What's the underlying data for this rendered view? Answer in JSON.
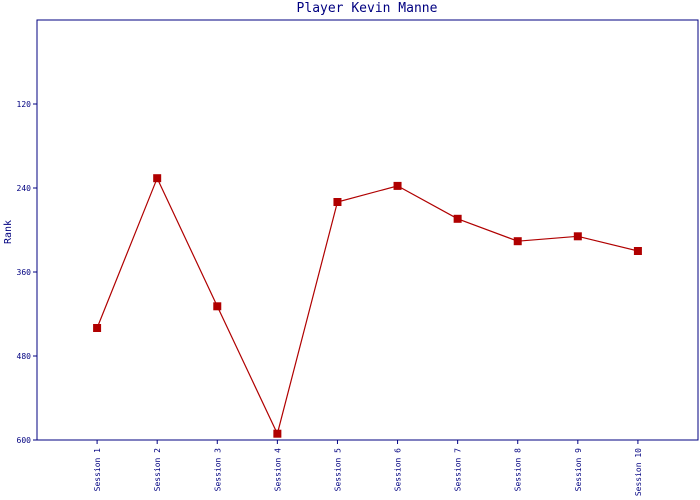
{
  "chart_data": {
    "type": "line",
    "title": "Player Kevin Manne",
    "y_label": "Rank",
    "categories": [
      "Session 1",
      "Session 2",
      "Session 3",
      "Session 4",
      "Session 5",
      "Session 6",
      "Session 7",
      "Session 8",
      "Session 9",
      "Session 10"
    ],
    "series": [
      {
        "name": "Rank",
        "color": "#b00000",
        "values": [
          440,
          226,
          409,
          591,
          260,
          237,
          284,
          316,
          309,
          330
        ]
      }
    ],
    "ylim": [
      0,
      600
    ],
    "yticks": [
      120,
      240,
      360,
      480,
      600
    ],
    "y_inverted": true,
    "grid": false
  }
}
